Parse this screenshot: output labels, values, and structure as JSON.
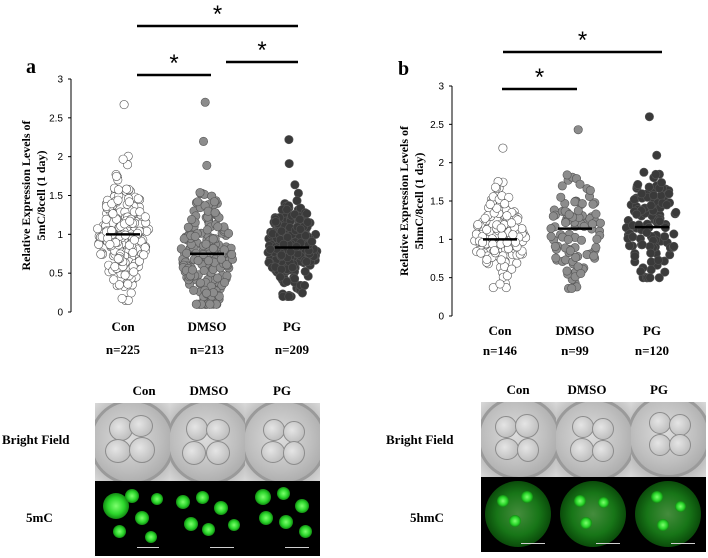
{
  "chart_data": [
    {
      "panel": "a",
      "type": "scatter",
      "ylabel_line1": "Relative Expression Levels of",
      "ylabel_line2": "5mC/8cell (1 day)",
      "ylim": [
        0,
        3
      ],
      "yticks": [
        "0",
        "0.5",
        "1",
        "1.5",
        "2",
        "2.5",
        "3"
      ],
      "categories": [
        "Con",
        "DMSO",
        "PG"
      ],
      "n_labels": [
        "n=225",
        "n=213",
        "n=209"
      ],
      "n": [
        225,
        213,
        209
      ],
      "means": [
        1.0,
        0.75,
        0.83
      ],
      "min": [
        0.15,
        0.1,
        0.2
      ],
      "max": [
        2.67,
        2.7,
        2.22
      ],
      "spread": [
        0.38,
        0.38,
        0.33
      ],
      "point_colors": [
        "#ffffff",
        "#8c8c8c",
        "#3a3a3a"
      ],
      "significance": [
        {
          "pair": [
            "Con",
            "DMSO"
          ],
          "symbol": "*"
        },
        {
          "pair": [
            "DMSO",
            "PG"
          ],
          "symbol": "*"
        },
        {
          "pair": [
            "Con",
            "PG"
          ],
          "symbol": "*"
        }
      ]
    },
    {
      "panel": "b",
      "type": "scatter",
      "ylabel_line1": "Relative Expression Levels of",
      "ylabel_line2": "5hmC/8cell (1 day)",
      "ylim": [
        0,
        3
      ],
      "yticks": [
        "0",
        "0.5",
        "1",
        "1.5",
        "2",
        "2.5",
        "3"
      ],
      "categories": [
        "Con",
        "DMSO",
        "PG"
      ],
      "n_labels": [
        "n=146",
        "n=99",
        "n=120"
      ],
      "n": [
        146,
        99,
        120
      ],
      "means": [
        1.0,
        1.14,
        1.16
      ],
      "min": [
        0.37,
        0.36,
        0.5
      ],
      "max": [
        2.19,
        2.43,
        2.6
      ],
      "spread": [
        0.28,
        0.42,
        0.4
      ],
      "point_colors": [
        "#ffffff",
        "#8c8c8c",
        "#3a3a3a"
      ],
      "significance": [
        {
          "pair": [
            "Con",
            "DMSO"
          ],
          "symbol": "*"
        },
        {
          "pair": [
            "Con",
            "PG"
          ],
          "symbol": "*"
        }
      ]
    }
  ],
  "panels": {
    "a_letter": "a",
    "b_letter": "b"
  },
  "images": {
    "left": {
      "columns": [
        "Con",
        "DMSO",
        "PG"
      ],
      "row1": "Bright Field",
      "row2": "5mC"
    },
    "right": {
      "columns": [
        "Con",
        "DMSO",
        "PG"
      ],
      "row1": "Bright Field",
      "row2": "5hmC"
    }
  }
}
